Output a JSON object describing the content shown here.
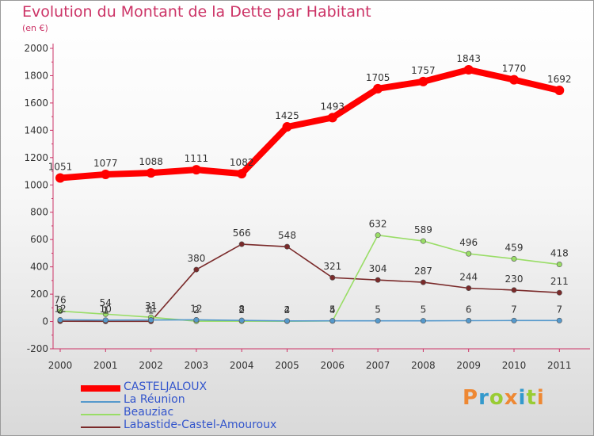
{
  "header": {
    "title": "Evolution du Montant de la Dette par Habitant",
    "subtitle": "(en €)"
  },
  "brand": {
    "name": "Proxiti"
  },
  "chart_data": {
    "type": "line",
    "title": "Evolution du Montant de la Dette par Habitant",
    "subtitle": "(en €)",
    "xlabel": "",
    "ylabel": "",
    "categories": [
      "2000",
      "2001",
      "2002",
      "2003",
      "2004",
      "2005",
      "2006",
      "2007",
      "2008",
      "2009",
      "2010",
      "2011"
    ],
    "ylim": [
      -200,
      2000
    ],
    "yticks": [
      "-200",
      "0",
      "200",
      "400",
      "600",
      "800",
      "1000",
      "1200",
      "1400",
      "1600",
      "1800",
      "2000"
    ],
    "grid": false,
    "legend_position": "bottom-left",
    "series": [
      {
        "name": "CASTELJALOUX",
        "color": "#ff0000",
        "values": [
          1051,
          1077,
          1088,
          1111,
          1082,
          1425,
          1493,
          1705,
          1757,
          1843,
          1770,
          1692
        ],
        "labels": [
          "1051",
          "1077",
          "1088",
          "1111",
          "1082",
          "1425",
          "1493",
          "1705",
          "1757",
          "1843",
          "1770",
          "1692"
        ]
      },
      {
        "name": "La Réunion",
        "color": "#5599cc",
        "values": [
          12,
          10,
          11,
          12,
          8,
          4,
          5,
          5,
          5,
          6,
          7,
          7
        ],
        "labels": [
          "12",
          "10",
          "11",
          "12",
          "8",
          "4",
          "5",
          "5",
          "5",
          "6",
          "7",
          "7"
        ]
      },
      {
        "name": "Beauziac",
        "color": "#99dd66",
        "values": [
          76,
          54,
          31,
          2,
          2,
          2,
          4,
          632,
          589,
          496,
          459,
          418
        ],
        "labels": [
          "76",
          "54",
          "31",
          "2",
          "2",
          "2",
          "4",
          "632",
          "589",
          "496",
          "459",
          "418"
        ]
      },
      {
        "name": "Labastide-Castel-Amouroux",
        "color": "#7a2a2a",
        "values": [
          2,
          1,
          1,
          380,
          566,
          548,
          321,
          304,
          287,
          244,
          230,
          211
        ],
        "labels": [
          "2",
          "1",
          "1",
          "380",
          "566",
          "548",
          "321",
          "304",
          "287",
          "244",
          "230",
          "211"
        ]
      }
    ]
  }
}
